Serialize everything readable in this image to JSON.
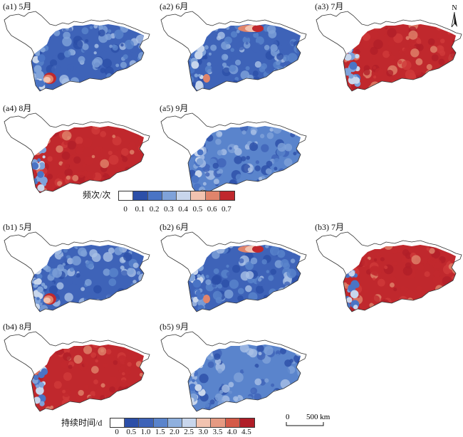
{
  "figure": {
    "panels": [
      {
        "id": "a1",
        "label": "(a1) 5月",
        "scheme": "low-west-hot"
      },
      {
        "id": "a2",
        "label": "(a2) 6月",
        "scheme": "mixed-north-hot"
      },
      {
        "id": "a3",
        "label": "(a3) 7月",
        "scheme": "hot"
      },
      {
        "id": "a4",
        "label": "(a4) 8月",
        "scheme": "hot"
      },
      {
        "id": "a5",
        "label": "(a5) 9月",
        "scheme": "cool"
      },
      {
        "id": "b1",
        "label": "(b1) 5月",
        "scheme": "low-west-hot"
      },
      {
        "id": "b2",
        "label": "(b2) 6月",
        "scheme": "mixed-north-hot"
      },
      {
        "id": "b3",
        "label": "(b3) 7月",
        "scheme": "hot"
      },
      {
        "id": "b4",
        "label": "(b4) 8月",
        "scheme": "hot"
      },
      {
        "id": "b5",
        "label": "(b5) 9月",
        "scheme": "cool"
      }
    ],
    "legend_a": {
      "title": "频次/次",
      "ticks": [
        "0",
        "0.1",
        "0.2",
        "0.3",
        "0.4",
        "0.5",
        "0.6",
        "0.7"
      ],
      "colors": [
        "#ffffff",
        "#2c4fa8",
        "#4a74c5",
        "#7fa2d9",
        "#c8d6ec",
        "#f2c3b0",
        "#e0846b",
        "#c0282d"
      ]
    },
    "legend_b": {
      "title": "持续时间/d",
      "ticks": [
        "0",
        "0.5",
        "1.0",
        "1.5",
        "2.0",
        "2.5",
        "3.0",
        "3.5",
        "4.0",
        "4.5"
      ],
      "colors": [
        "#ffffff",
        "#2c4fa8",
        "#3e63b8",
        "#5a84cc",
        "#8fb0de",
        "#c8d6ec",
        "#f2c3b0",
        "#e69a82",
        "#d45a48",
        "#b01e28"
      ]
    },
    "north_arrow": "N",
    "scale_bar": {
      "zero": "0",
      "distance": "500 km"
    }
  }
}
